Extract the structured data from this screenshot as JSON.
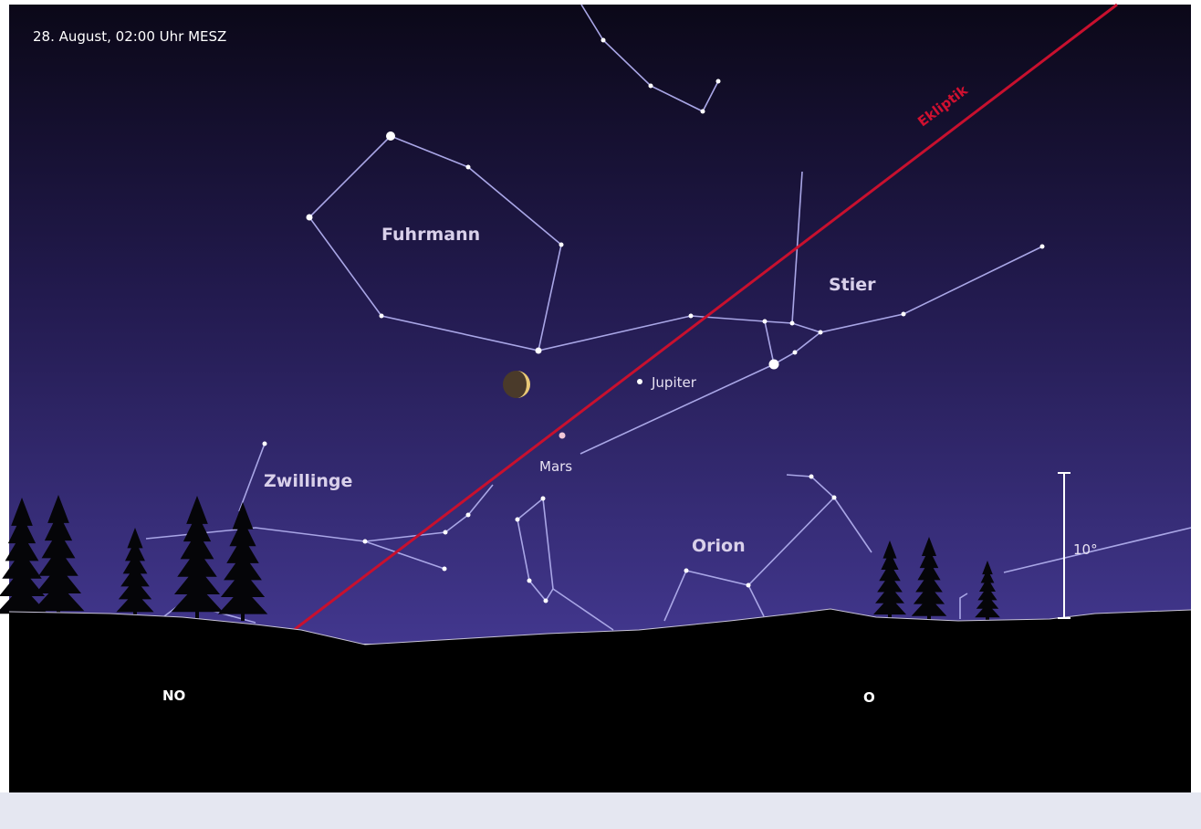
{
  "caption": "28. August, 02:00 Uhr MESZ",
  "constellations": [
    "Fuhrmann",
    "Stier",
    "Zwillinge",
    "Orion"
  ],
  "planets": [
    "Jupiter",
    "Mars"
  ],
  "ecliptic": "Ekliptik",
  "scale": "10°",
  "directions": [
    "NO",
    "O"
  ]
}
